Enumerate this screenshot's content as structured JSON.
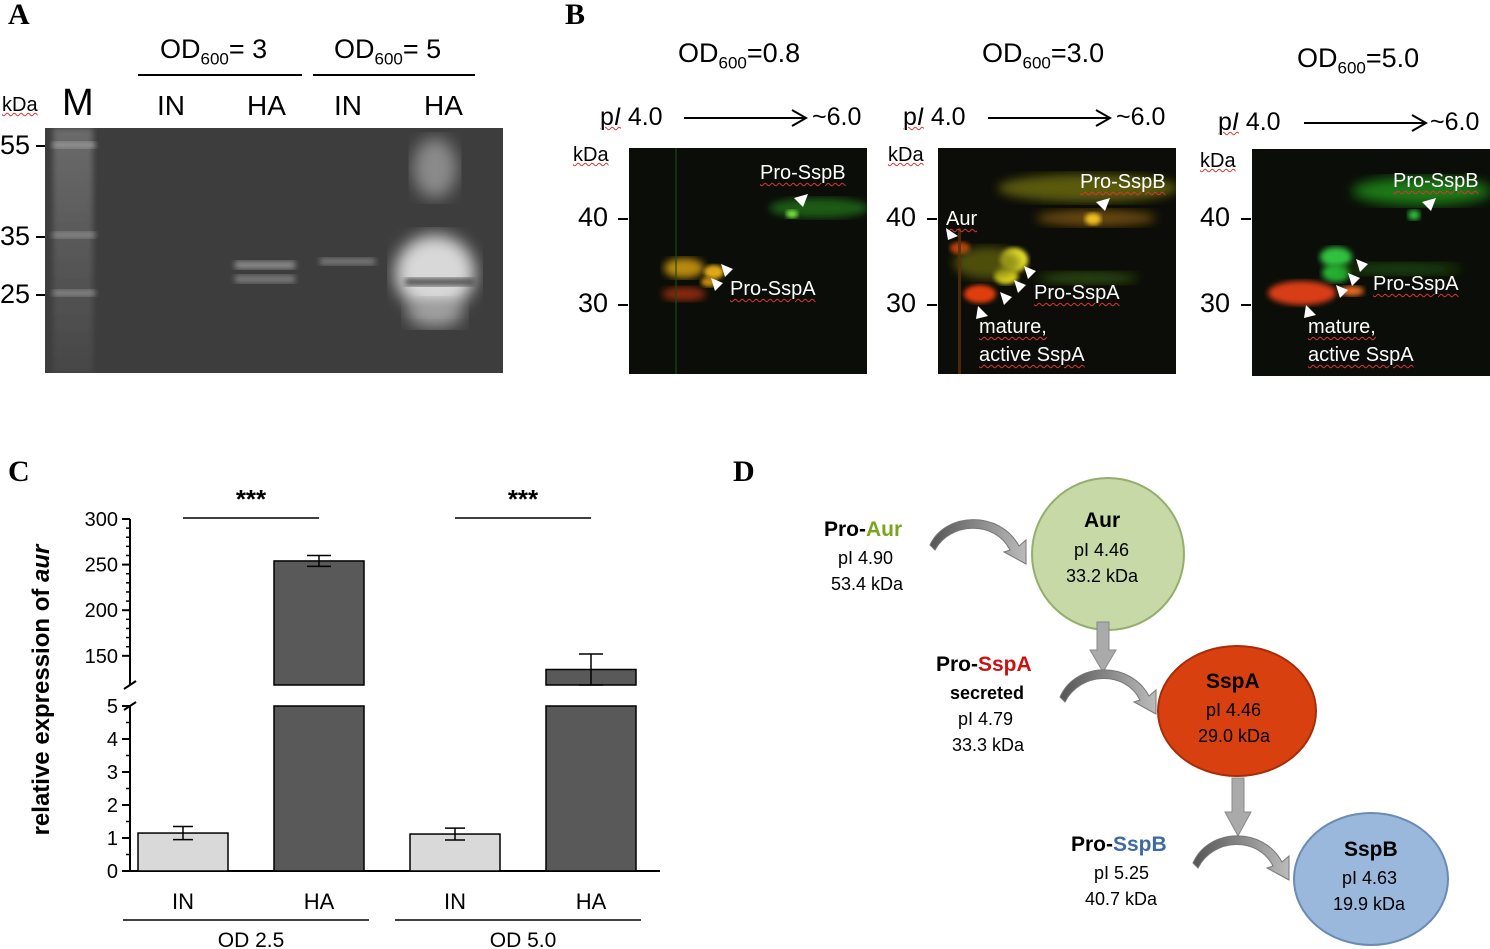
{
  "panel_labels": {
    "a": "A",
    "b": "B",
    "c": "C",
    "d": "D"
  },
  "panel_a": {
    "group1": {
      "prefix": "OD",
      "sub": "600",
      "suffix": "= 3"
    },
    "group2": {
      "prefix": "OD",
      "sub": "600",
      "suffix": "= 5"
    },
    "lanes": [
      "IN",
      "HA",
      "IN",
      "HA"
    ],
    "marker": "M",
    "kda": "kDa",
    "ladder": [
      "55",
      "35",
      "25"
    ]
  },
  "panel_b": {
    "blots": [
      {
        "od_prefix": "OD",
        "od_sub": "600",
        "od_suffix": "=0.8",
        "pi": "pI",
        "pi_start": "4.0",
        "pi_end": "~6.0",
        "kda": "kDa",
        "y40": "40",
        "y30": "30",
        "labels": [
          "Pro-SspB",
          "Pro-SspA"
        ]
      },
      {
        "od_prefix": "OD",
        "od_sub": "600",
        "od_suffix": "=3.0",
        "pi": "pI",
        "pi_start": "4.0",
        "pi_end": "~6.0",
        "kda": "kDa",
        "y40": "40",
        "y30": "30",
        "labels": [
          "Pro-SspB",
          "Aur",
          "Pro-SspA",
          "mature,",
          "active SspA"
        ]
      },
      {
        "od_prefix": "OD",
        "od_sub": "600",
        "od_suffix": "=5.0",
        "pi": "pI",
        "pi_start": "4.0",
        "pi_end": "~6.0",
        "kda": "kDa",
        "y40": "40",
        "y30": "30",
        "labels": [
          "Pro-SspB",
          "Pro-SspA",
          "mature,",
          "active SspA"
        ]
      }
    ]
  },
  "chart_data": {
    "type": "bar",
    "ylabel_prefix": "relative expression of ",
    "ylabel_gene": "aur",
    "categories": [
      "IN",
      "HA",
      "IN",
      "HA"
    ],
    "groups": [
      "OD 2.5",
      "OD 5.0"
    ],
    "values": [
      1.15,
      254,
      1.12,
      135
    ],
    "errors": [
      0.2,
      6,
      0.18,
      17
    ],
    "colors": [
      "#d9d9d9",
      "#595959",
      "#d9d9d9",
      "#595959"
    ],
    "significance": [
      "***",
      "***"
    ],
    "yaxis_broken": true,
    "lower_ylim": [
      0,
      5
    ],
    "upper_ylim": [
      118,
      300
    ],
    "lower_ticks": [
      "0",
      "1",
      "2",
      "3",
      "4",
      "5"
    ],
    "upper_ticks": [
      "150",
      "200",
      "250",
      "300"
    ]
  },
  "panel_d": {
    "pro_aur": {
      "pro": "Pro-",
      "name": "Aur",
      "pi": "pI 4.90",
      "kda": "53.4 kDa",
      "color": "#7aa51c"
    },
    "aur": {
      "name": "Aur",
      "pi": "pI 4.46",
      "kda": "33.2 kDa",
      "fill": "#c6d9a6"
    },
    "pro_sspa": {
      "pro": "Pro-",
      "name": "SspA",
      "note": "secreted",
      "pi": "pI 4.79",
      "kda": "33.3 kDa",
      "color": "#cc1111"
    },
    "sspa": {
      "name": "SspA",
      "pi": "pI 4.46",
      "kda": "29.0 kDa",
      "fill": "#d84010"
    },
    "pro_sspb": {
      "pro": "Pro-",
      "name": "SspB",
      "pi": "pI 5.25",
      "kda": "40.7 kDa",
      "color": "#3d6aa3"
    },
    "sspb": {
      "name": "SspB",
      "pi": "pI 4.63",
      "kda": "19.9 kDa",
      "fill": "#9ab7dc"
    }
  }
}
